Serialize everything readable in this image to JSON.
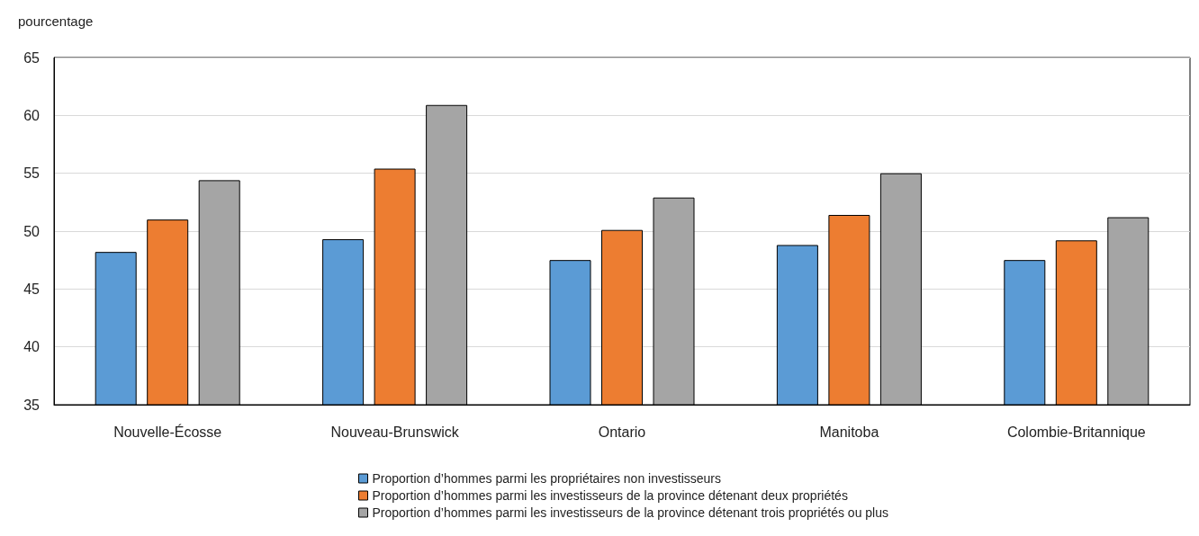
{
  "chart_data": {
    "type": "bar",
    "ylabel": "pourcentage",
    "categories": [
      "Nouvelle-Écosse",
      "Nouveau-Brunswick",
      "Ontario",
      "Manitoba",
      "Colombie-Britannique"
    ],
    "series": [
      {
        "name": "Proportion d’hommes parmi les propriétaires non investisseurs",
        "color": "#5b9bd5",
        "values": [
          48.2,
          49.3,
          47.5,
          48.8,
          47.5
        ]
      },
      {
        "name": "Proportion d’hommes parmi les investisseurs de la province détenant deux propriétés",
        "color": "#ed7d31",
        "values": [
          51.0,
          55.4,
          50.1,
          51.4,
          49.2
        ]
      },
      {
        "name": "Proportion d’hommes parmi les investisseurs de la province détenant trois propriétés ou plus",
        "color": "#a5a5a5",
        "values": [
          54.4,
          60.9,
          52.9,
          55.0,
          51.2
        ]
      }
    ],
    "ylim": [
      35,
      65
    ],
    "yticks": [
      35,
      40,
      45,
      50,
      55,
      60,
      65
    ],
    "grid": "y",
    "legend": "bottom"
  }
}
